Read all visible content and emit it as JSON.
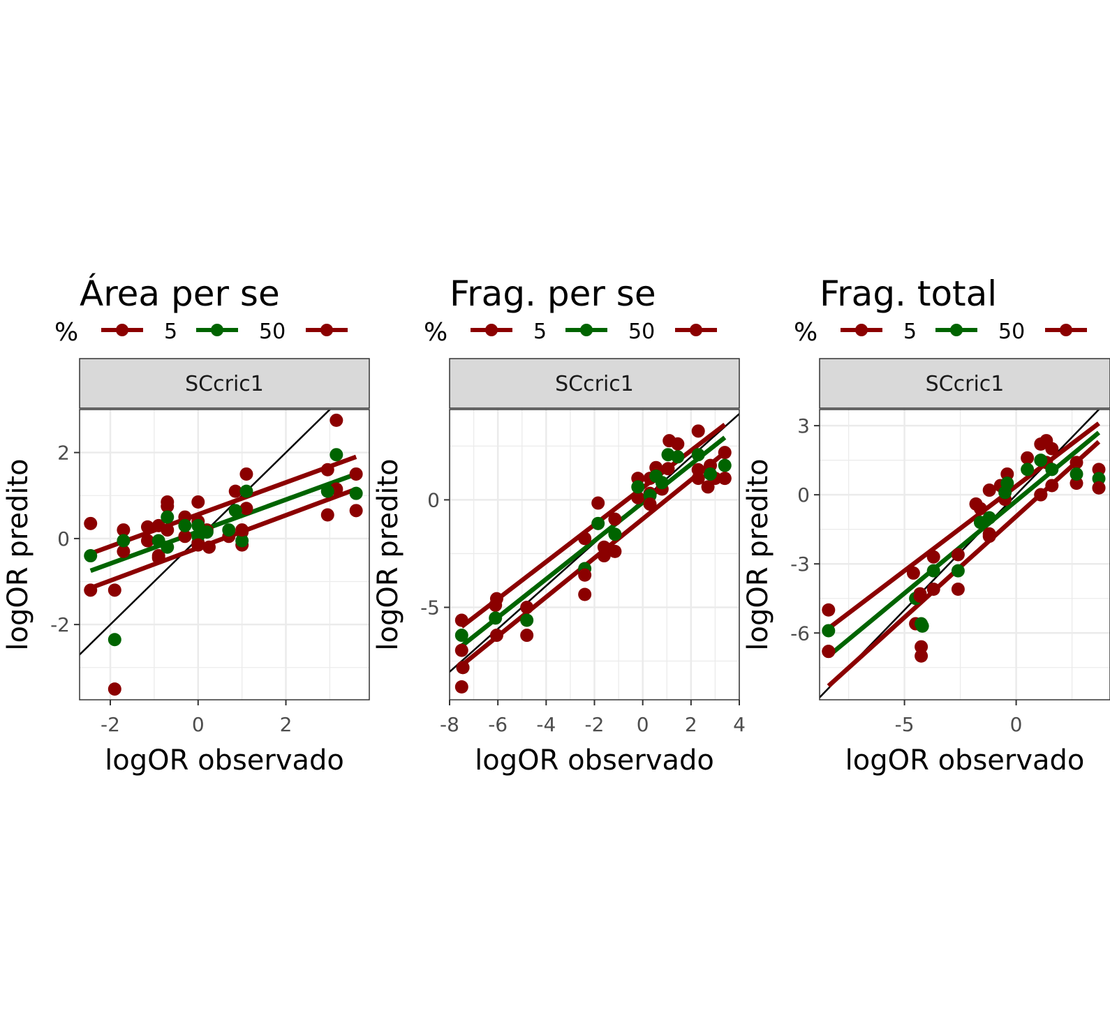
{
  "figure": {
    "legend_title": "%",
    "strip_label": "SCcric1",
    "x_title": "logOR observado",
    "y_title": "logOR predito",
    "colors": {
      "5": "#8B0000",
      "50": "#006400",
      "95": "#8B0000",
      "identity": "#000000",
      "grid": "#ebebeb",
      "strip_bg": "#d9d9d9"
    }
  },
  "chart_data": [
    {
      "type": "scatter",
      "title": "Área per se",
      "legend_labels": [
        "5",
        "50"
      ],
      "xlim": [
        -2.7,
        3.9
      ],
      "ylim": [
        -3.75,
        3.0
      ],
      "x_ticks": [
        -2,
        0,
        2
      ],
      "y_ticks": [
        -2,
        0,
        2
      ],
      "x_tick_labels": [
        "-2",
        "0",
        "2"
      ],
      "y_tick_labels": [
        "-2",
        "0",
        "2"
      ],
      "grid": true,
      "legend_position": "top",
      "identity_line": true,
      "series": [
        {
          "key": "5",
          "points": [
            [
              -2.45,
              0.35
            ],
            [
              -1.9,
              -3.5
            ],
            [
              -1.7,
              0.2
            ],
            [
              -1.7,
              -0.3
            ],
            [
              -1.15,
              0.27
            ],
            [
              -1.15,
              -0.05
            ],
            [
              -0.9,
              -0.4
            ],
            [
              -0.9,
              0.3
            ],
            [
              -0.7,
              0.85
            ],
            [
              -0.7,
              0.75
            ],
            [
              -0.7,
              0.2
            ],
            [
              -0.3,
              0.5
            ],
            [
              -0.3,
              0.05
            ],
            [
              0.0,
              0.85
            ],
            [
              0.0,
              0.4
            ],
            [
              0.0,
              -0.1
            ],
            [
              0.2,
              0.2
            ],
            [
              0.25,
              -0.2
            ],
            [
              0.7,
              0.05
            ],
            [
              0.85,
              1.1
            ],
            [
              1.0,
              0.15
            ],
            [
              1.0,
              -0.15
            ],
            [
              1.1,
              1.5
            ],
            [
              1.1,
              0.7
            ],
            [
              2.95,
              1.6
            ],
            [
              3.15,
              2.75
            ],
            [
              3.15,
              1.15
            ],
            [
              3.6,
              1.5
            ]
          ],
          "fit_line": [
            [
              -2.45,
              -0.35
            ],
            [
              3.6,
              1.9
            ]
          ]
        },
        {
          "key": "50",
          "points": [
            [
              -2.45,
              -0.4
            ],
            [
              -1.9,
              -2.35
            ],
            [
              -1.7,
              -0.05
            ],
            [
              -0.9,
              -0.05
            ],
            [
              -0.7,
              0.5
            ],
            [
              -0.7,
              -0.2
            ],
            [
              -0.3,
              0.3
            ],
            [
              0.0,
              0.3
            ],
            [
              0.0,
              0.05
            ],
            [
              0.2,
              0.15
            ],
            [
              0.7,
              0.2
            ],
            [
              0.85,
              0.65
            ],
            [
              1.0,
              -0.05
            ],
            [
              1.1,
              1.1
            ],
            [
              2.95,
              1.1
            ],
            [
              3.15,
              1.95
            ],
            [
              3.6,
              1.05
            ]
          ],
          "fit_line": [
            [
              -2.45,
              -0.75
            ],
            [
              3.6,
              1.5
            ]
          ]
        },
        {
          "key": "95",
          "points": [
            [
              -2.45,
              -1.2
            ],
            [
              -1.9,
              -1.2
            ],
            [
              -0.9,
              -0.45
            ],
            [
              0.0,
              -0.15
            ],
            [
              1.0,
              0.2
            ],
            [
              2.95,
              0.55
            ],
            [
              3.6,
              0.65
            ]
          ],
          "fit_line": [
            [
              -2.45,
              -1.15
            ],
            [
              3.6,
              1.15
            ]
          ]
        }
      ]
    },
    {
      "type": "scatter",
      "title": "Frag. per se",
      "legend_labels": [
        "5",
        "50"
      ],
      "xlim": [
        -8.0,
        4.0
      ],
      "ylim": [
        -9.3,
        4.2
      ],
      "x_ticks": [
        -8,
        -6,
        -4,
        -2,
        0,
        2,
        4
      ],
      "y_ticks": [
        -5,
        0
      ],
      "x_tick_labels": [
        "-8",
        "-6",
        "-4",
        "-2",
        "0",
        "2",
        "4"
      ],
      "y_tick_labels": [
        "-5",
        "0"
      ],
      "grid": true,
      "legend_position": "top",
      "identity_line": true,
      "series": [
        {
          "key": "5",
          "points": [
            [
              -7.5,
              -5.6
            ],
            [
              -7.5,
              -7.0
            ],
            [
              -7.5,
              -8.7
            ],
            [
              -6.1,
              -4.9
            ],
            [
              -6.05,
              -4.6
            ],
            [
              -6.05,
              -6.3
            ],
            [
              -4.8,
              -5.0
            ],
            [
              -4.8,
              -6.3
            ],
            [
              -2.4,
              -1.8
            ],
            [
              -2.4,
              -4.4
            ],
            [
              -1.85,
              -0.15
            ],
            [
              -1.6,
              -2.2
            ],
            [
              -1.6,
              -2.6
            ],
            [
              -1.15,
              -2.4
            ],
            [
              -1.15,
              -0.9
            ],
            [
              -0.2,
              1.0
            ],
            [
              -0.2,
              0.1
            ],
            [
              0.3,
              0.3
            ],
            [
              0.3,
              1.0
            ],
            [
              0.55,
              1.5
            ],
            [
              0.8,
              0.5
            ],
            [
              1.05,
              1.45
            ],
            [
              1.1,
              2.75
            ],
            [
              1.45,
              2.6
            ],
            [
              2.3,
              3.2
            ],
            [
              2.3,
              1.0
            ],
            [
              2.7,
              0.6
            ],
            [
              2.8,
              1.6
            ],
            [
              3.0,
              1.0
            ],
            [
              3.4,
              2.2
            ],
            [
              3.4,
              1.0
            ]
          ],
          "fit_line": [
            [
              -7.5,
              -5.9
            ],
            [
              3.4,
              3.5
            ]
          ]
        },
        {
          "key": "50",
          "points": [
            [
              -7.5,
              -6.3
            ],
            [
              -7.45,
              -7.8
            ],
            [
              -6.1,
              -5.5
            ],
            [
              -4.8,
              -5.6
            ],
            [
              -2.4,
              -3.2
            ],
            [
              -1.85,
              -1.1
            ],
            [
              -1.15,
              -1.6
            ],
            [
              -0.2,
              0.6
            ],
            [
              0.3,
              0.2
            ],
            [
              0.55,
              1.1
            ],
            [
              0.8,
              0.8
            ],
            [
              1.05,
              2.1
            ],
            [
              1.45,
              2.0
            ],
            [
              2.3,
              2.1
            ],
            [
              2.8,
              1.2
            ],
            [
              3.4,
              1.6
            ]
          ],
          "fit_line": [
            [
              -7.5,
              -6.8
            ],
            [
              3.4,
              2.9
            ]
          ]
        },
        {
          "key": "95",
          "points": [
            [
              -7.45,
              -7.8
            ],
            [
              -2.4,
              -3.5
            ],
            [
              0.3,
              -0.2
            ],
            [
              2.3,
              1.4
            ],
            [
              3.4,
              1.0
            ]
          ],
          "fit_line": [
            [
              -7.5,
              -7.7
            ],
            [
              3.4,
              2.2
            ]
          ]
        }
      ]
    },
    {
      "type": "scatter",
      "title": "Frag. total",
      "legend_labels": [
        "5",
        "50"
      ],
      "xlim": [
        -8.8,
        4.2
      ],
      "ylim": [
        -8.9,
        3.7
      ],
      "x_ticks": [
        -5,
        0
      ],
      "y_ticks": [
        -6,
        -3,
        0,
        3
      ],
      "x_tick_labels": [
        "-5",
        "0"
      ],
      "y_tick_labels": [
        "-6",
        "-3",
        "0",
        "3"
      ],
      "grid": true,
      "legend_position": "top",
      "identity_line": true,
      "series": [
        {
          "key": "5",
          "points": [
            [
              -8.4,
              -5.0
            ],
            [
              -8.4,
              -6.8
            ],
            [
              -4.6,
              -3.4
            ],
            [
              -4.5,
              -5.6
            ],
            [
              -4.3,
              -4.3
            ],
            [
              -4.25,
              -6.6
            ],
            [
              -4.25,
              -7.0
            ],
            [
              -3.7,
              -2.7
            ],
            [
              -3.7,
              -4.1
            ],
            [
              -2.6,
              -4.1
            ],
            [
              -2.6,
              -2.6
            ],
            [
              -1.8,
              -0.4
            ],
            [
              -1.6,
              -0.6
            ],
            [
              -1.2,
              0.2
            ],
            [
              -1.2,
              -1.8
            ],
            [
              -0.7,
              0.4
            ],
            [
              -0.5,
              -0.2
            ],
            [
              -0.4,
              0.9
            ],
            [
              0.5,
              1.6
            ],
            [
              1.1,
              2.2
            ],
            [
              1.1,
              0.0
            ],
            [
              1.35,
              2.35
            ],
            [
              1.35,
              1.4
            ],
            [
              1.6,
              2.0
            ],
            [
              1.6,
              0.4
            ],
            [
              2.7,
              1.4
            ],
            [
              2.7,
              0.5
            ],
            [
              3.7,
              1.1
            ],
            [
              3.7,
              0.3
            ]
          ],
          "fit_line": [
            [
              -8.4,
              -5.8
            ],
            [
              3.7,
              3.1
            ]
          ]
        },
        {
          "key": "50",
          "points": [
            [
              -8.4,
              -5.9
            ],
            [
              -4.5,
              -4.5
            ],
            [
              -4.25,
              -5.6
            ],
            [
              -4.2,
              -5.7
            ],
            [
              -3.7,
              -3.3
            ],
            [
              -2.6,
              -3.3
            ],
            [
              -1.6,
              -1.2
            ],
            [
              -1.2,
              -1.0
            ],
            [
              -0.5,
              0.1
            ],
            [
              -0.4,
              0.5
            ],
            [
              0.5,
              1.1
            ],
            [
              1.1,
              1.5
            ],
            [
              1.6,
              1.1
            ],
            [
              2.7,
              0.9
            ],
            [
              3.7,
              0.7
            ]
          ],
          "fit_line": [
            [
              -8.4,
              -7.0
            ],
            [
              3.7,
              2.7
            ]
          ]
        },
        {
          "key": "95",
          "points": [
            [
              -8.4,
              -6.8
            ],
            [
              -4.3,
              -4.4
            ],
            [
              -1.2,
              -1.7
            ],
            [
              1.1,
              0.0
            ],
            [
              3.7,
              0.3
            ]
          ],
          "fit_line": [
            [
              -8.4,
              -8.3
            ],
            [
              3.7,
              2.3
            ]
          ]
        }
      ]
    }
  ]
}
